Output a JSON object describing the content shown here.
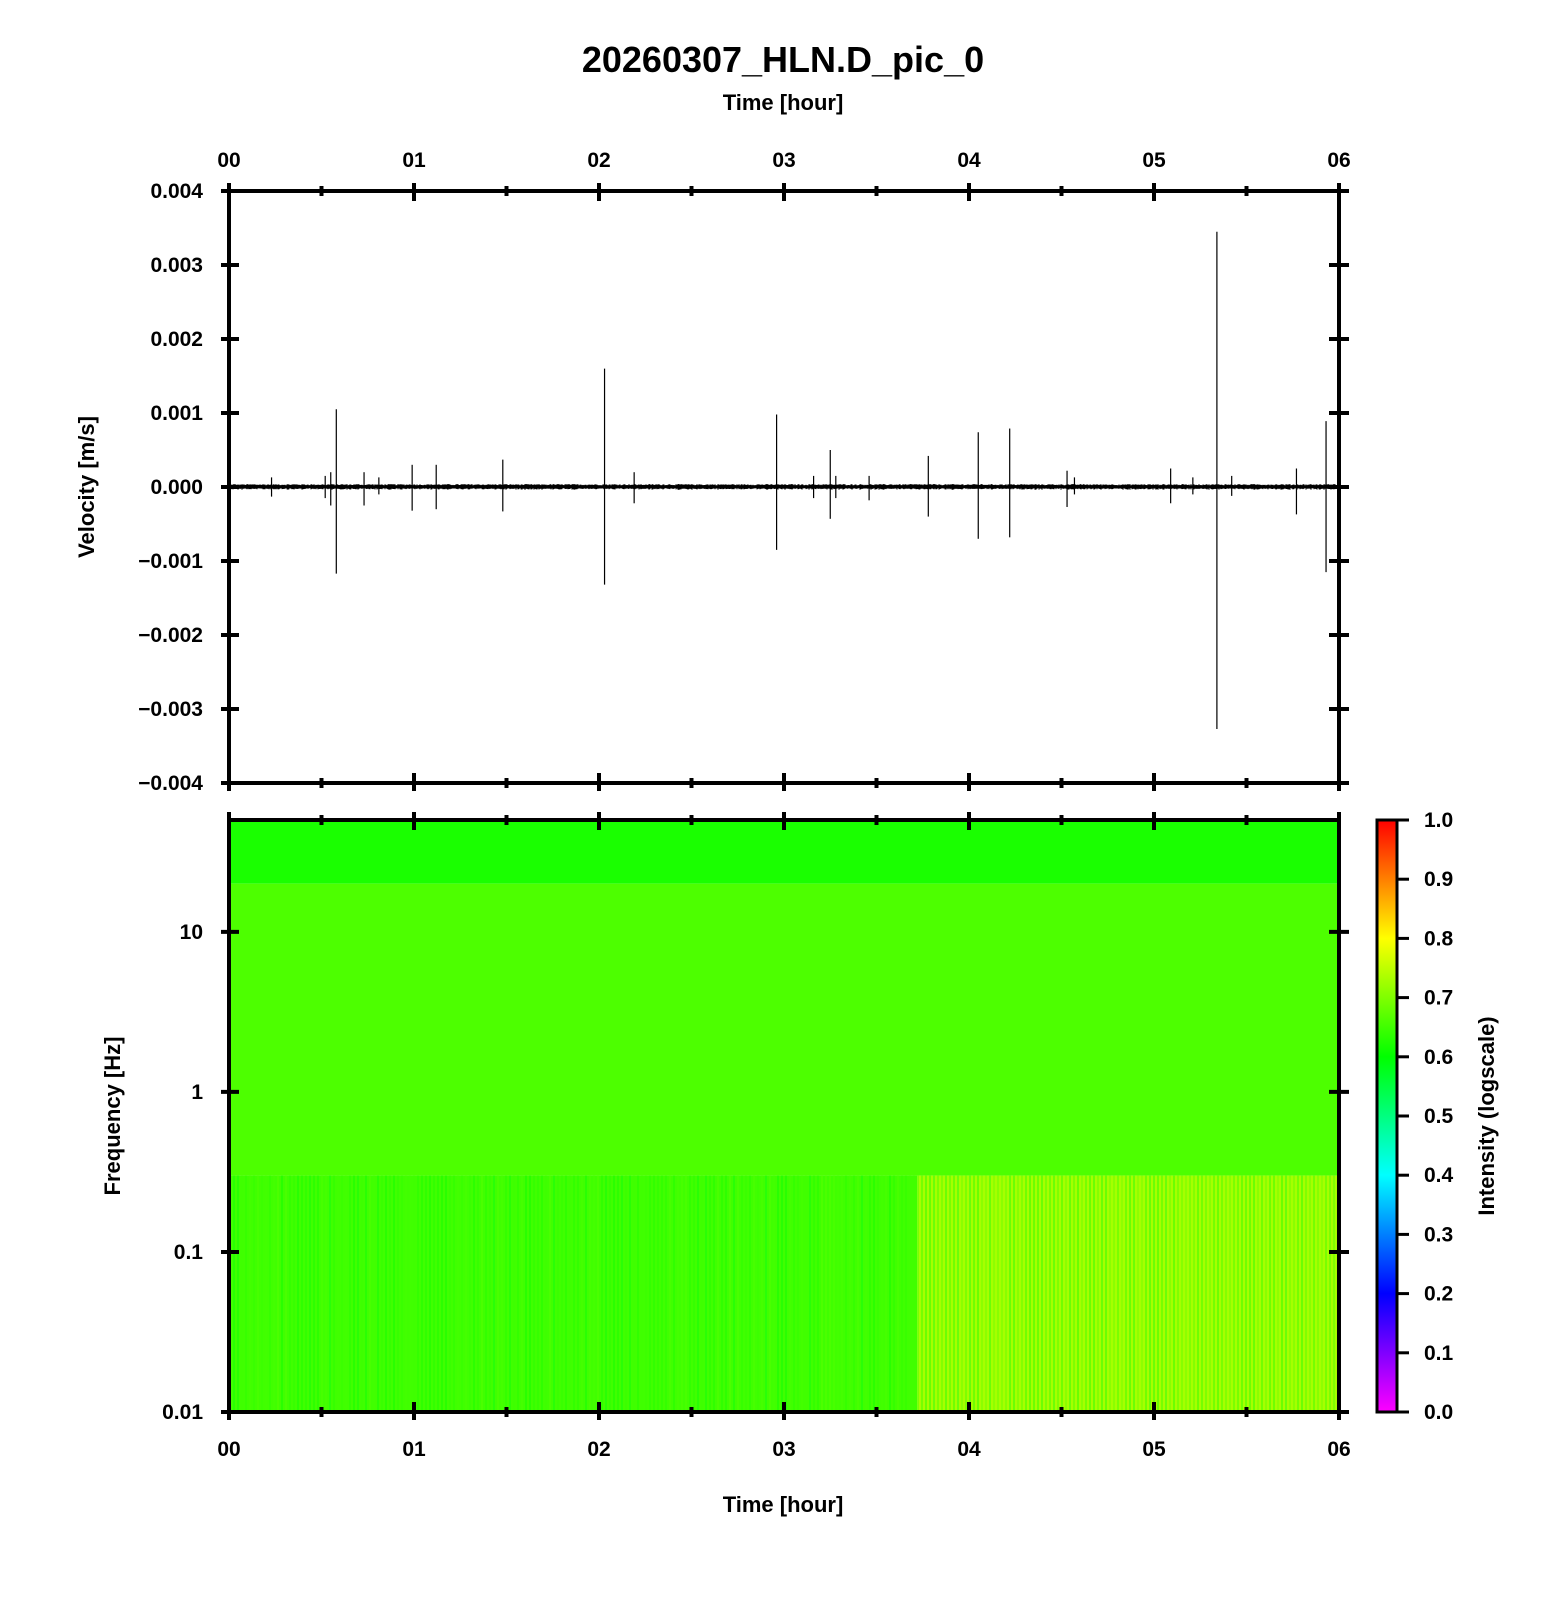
{
  "chart_data": [
    {
      "type": "line",
      "title": "20260307_HLN.D_pic_0",
      "xlabel_top": "Time [hour]",
      "ylabel": "Velocity [m/s]",
      "xlim": [
        0,
        6
      ],
      "ylim": [
        -0.004,
        0.004
      ],
      "x_ticks": [
        "00",
        "01",
        "02",
        "03",
        "04",
        "05",
        "06"
      ],
      "y_ticks": [
        "0.004",
        "0.003",
        "0.002",
        "0.001",
        "0.000",
        "−0.001",
        "−0.002",
        "−0.003",
        "−0.004"
      ],
      "baseline_noise_amplitude": 4e-05,
      "spikes": [
        {
          "t": 0.23,
          "max": 0.00013,
          "min": -0.00013
        },
        {
          "t": 0.52,
          "max": 0.00015,
          "min": -0.00015
        },
        {
          "t": 0.55,
          "max": 0.0002,
          "min": -0.00025
        },
        {
          "t": 0.58,
          "max": 0.00105,
          "min": -0.00117
        },
        {
          "t": 0.73,
          "max": 0.0002,
          "min": -0.00025
        },
        {
          "t": 0.81,
          "max": 0.00013,
          "min": -0.0001
        },
        {
          "t": 0.99,
          "max": 0.0003,
          "min": -0.00032
        },
        {
          "t": 1.12,
          "max": 0.0003,
          "min": -0.0003
        },
        {
          "t": 1.48,
          "max": 0.00037,
          "min": -0.00033
        },
        {
          "t": 2.03,
          "max": 0.0016,
          "min": -0.00132
        },
        {
          "t": 2.19,
          "max": 0.0002,
          "min": -0.00022
        },
        {
          "t": 2.96,
          "max": 0.00098,
          "min": -0.00085
        },
        {
          "t": 3.16,
          "max": 0.00015,
          "min": -0.00015
        },
        {
          "t": 3.25,
          "max": 0.0005,
          "min": -0.00043
        },
        {
          "t": 3.28,
          "max": 0.00015,
          "min": -0.00015
        },
        {
          "t": 3.46,
          "max": 0.00015,
          "min": -0.00018
        },
        {
          "t": 3.78,
          "max": 0.00042,
          "min": -0.0004
        },
        {
          "t": 4.05,
          "max": 0.00074,
          "min": -0.0007
        },
        {
          "t": 4.22,
          "max": 0.00079,
          "min": -0.00068
        },
        {
          "t": 4.53,
          "max": 0.00022,
          "min": -0.00027
        },
        {
          "t": 4.57,
          "max": 0.00013,
          "min": -0.0001
        },
        {
          "t": 5.09,
          "max": 0.00025,
          "min": -0.00022
        },
        {
          "t": 5.21,
          "max": 0.00013,
          "min": -0.0001
        },
        {
          "t": 5.34,
          "max": 0.00345,
          "min": -0.00327
        },
        {
          "t": 5.42,
          "max": 0.00015,
          "min": -0.00012
        },
        {
          "t": 5.77,
          "max": 0.00025,
          "min": -0.00037
        },
        {
          "t": 5.93,
          "max": 0.00089,
          "min": -0.00115
        }
      ]
    },
    {
      "type": "heatmap",
      "xlabel": "Time [hour]",
      "ylabel": "Frequency [Hz]",
      "xlim": [
        0,
        6
      ],
      "ylim": [
        0.01,
        50
      ],
      "yscale": "log",
      "x_ticks": [
        "00",
        "01",
        "02",
        "03",
        "04",
        "05",
        "06"
      ],
      "y_ticks": [
        {
          "value": 10,
          "label": "10"
        },
        {
          "value": 1,
          "label": "1"
        },
        {
          "value": 0.1,
          "label": "0.1"
        },
        {
          "value": 0.01,
          "label": "0.01"
        }
      ],
      "intensity_range": [
        0,
        1
      ],
      "intensity_regions": [
        {
          "freq_range": [
            20,
            50
          ],
          "time_range": [
            0,
            6
          ],
          "intensity": 0.62
        },
        {
          "freq_range": [
            0.3,
            20
          ],
          "time_range": [
            0,
            6
          ],
          "intensity": 0.66
        },
        {
          "freq_range": [
            0.01,
            0.3
          ],
          "time_range": [
            0,
            3.72
          ],
          "intensity": 0.65
        },
        {
          "freq_range": [
            0.01,
            0.3
          ],
          "time_range": [
            3.72,
            6
          ],
          "intensity": 0.73
        }
      ],
      "colorbar": {
        "label": "Intensity (logscale)",
        "ticks": [
          "1.0",
          "0.9",
          "0.8",
          "0.7",
          "0.6",
          "0.5",
          "0.4",
          "0.3",
          "0.2",
          "0.1",
          "0.0"
        ],
        "colors": [
          "#ff00ff",
          "#0000ff",
          "#00ffff",
          "#00ff00",
          "#ffff00",
          "#ff0000"
        ]
      }
    }
  ]
}
